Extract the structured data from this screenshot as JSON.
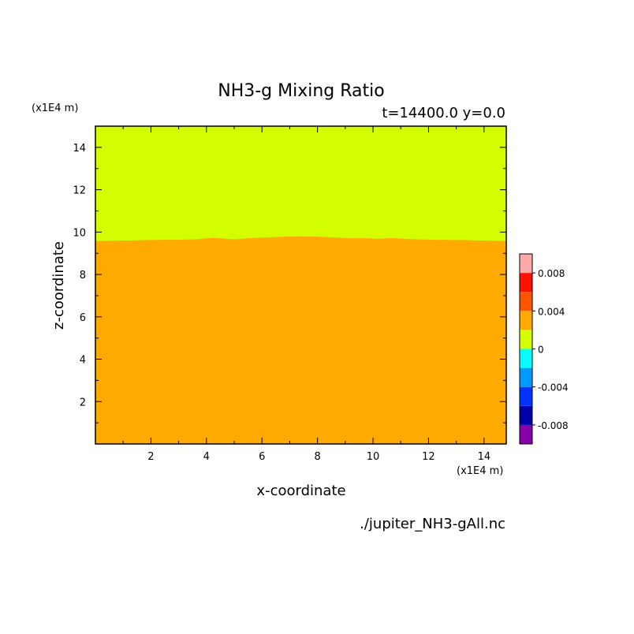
{
  "chart_data": {
    "type": "heatmap",
    "title": "NH3-g Mixing Ratio",
    "subtitle": "t=14400.0 y=0.0",
    "xlabel": "x-coordinate",
    "ylabel": "z-coordinate",
    "x_unit": "(x1E4 m)",
    "y_unit": "(x1E4 m)",
    "source_file": "./jupiter_NH3-gAll.nc",
    "xlim": [
      0.0,
      14.8
    ],
    "ylim": [
      0.0,
      15.0
    ],
    "x_ticks": [
      2,
      4,
      6,
      8,
      10,
      12,
      14
    ],
    "y_ticks": [
      2,
      4,
      6,
      8,
      10,
      12,
      14
    ],
    "x_tick_labels": [
      "2",
      "4",
      "6",
      "8",
      "10",
      "12",
      "14"
    ],
    "y_tick_labels": [
      "2",
      "4",
      "6",
      "8",
      "10",
      "12",
      "14"
    ],
    "regions": [
      {
        "range": "0.002 to 0.004",
        "color": "#ffaa00",
        "description": "below boundary"
      },
      {
        "range": "0 to 0.002",
        "color": "#d4ff00",
        "description": "above boundary"
      }
    ],
    "boundary": {
      "x": [
        0.0,
        1.0,
        2.0,
        3.0,
        3.6,
        4.2,
        4.6,
        5.0,
        5.6,
        6.2,
        6.8,
        7.4,
        8.0,
        8.6,
        9.2,
        9.8,
        10.2,
        10.6,
        11.0,
        11.6,
        12.2,
        12.8,
        13.4,
        14.0,
        14.8
      ],
      "z": [
        9.58,
        9.6,
        9.63,
        9.64,
        9.66,
        9.73,
        9.7,
        9.66,
        9.72,
        9.75,
        9.79,
        9.8,
        9.79,
        9.75,
        9.71,
        9.71,
        9.68,
        9.72,
        9.7,
        9.66,
        9.64,
        9.63,
        9.62,
        9.6,
        9.58
      ]
    },
    "colorbar": {
      "colors": [
        "#8800aa",
        "#0000aa",
        "#0033ff",
        "#0099ff",
        "#00ffff",
        "#d4ff00",
        "#ffaa00",
        "#ff5500",
        "#ff1100",
        "#ffaaaa"
      ],
      "range": [
        -0.01,
        0.01
      ],
      "tick_values": [
        0.008,
        0.004,
        0,
        -0.004,
        -0.008
      ],
      "tick_labels": [
        "0.008",
        "0.004",
        "0",
        "-0.004",
        "-0.008"
      ]
    }
  }
}
